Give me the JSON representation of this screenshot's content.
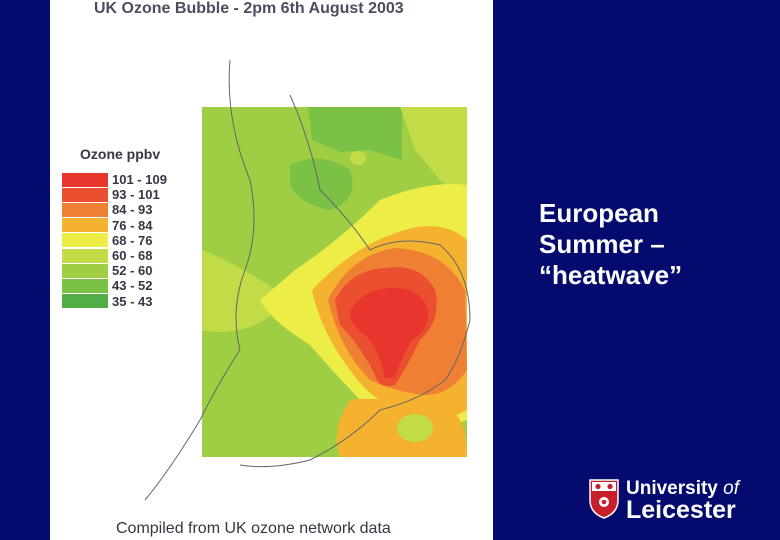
{
  "figure": {
    "title": "UK Ozone Bubble - 2pm 6th August 2003",
    "legend_title": "Ozone ppbv",
    "legend": [
      {
        "label": "101 - 109",
        "color": "#e8352e"
      },
      {
        "label": "93 - 101",
        "color": "#ea4f30"
      },
      {
        "label": "84 - 93",
        "color": "#ef7f33"
      },
      {
        "label": "76 - 84",
        "color": "#f5b22e"
      },
      {
        "label": "68 - 76",
        "color": "#eded48"
      },
      {
        "label": "60 - 68",
        "color": "#c1dc46"
      },
      {
        "label": "52 - 60",
        "color": "#9fce44"
      },
      {
        "label": "43 - 52",
        "color": "#7ac145"
      },
      {
        "label": "35 - 43",
        "color": "#52ad47"
      }
    ],
    "caption": "Compiled from UK ozone network data"
  },
  "slide": {
    "lines": [
      "European",
      "Summer –",
      "“heatwave”"
    ]
  },
  "logo": {
    "line1_main": "University",
    "line1_of": "of",
    "line2": "Leicester"
  }
}
